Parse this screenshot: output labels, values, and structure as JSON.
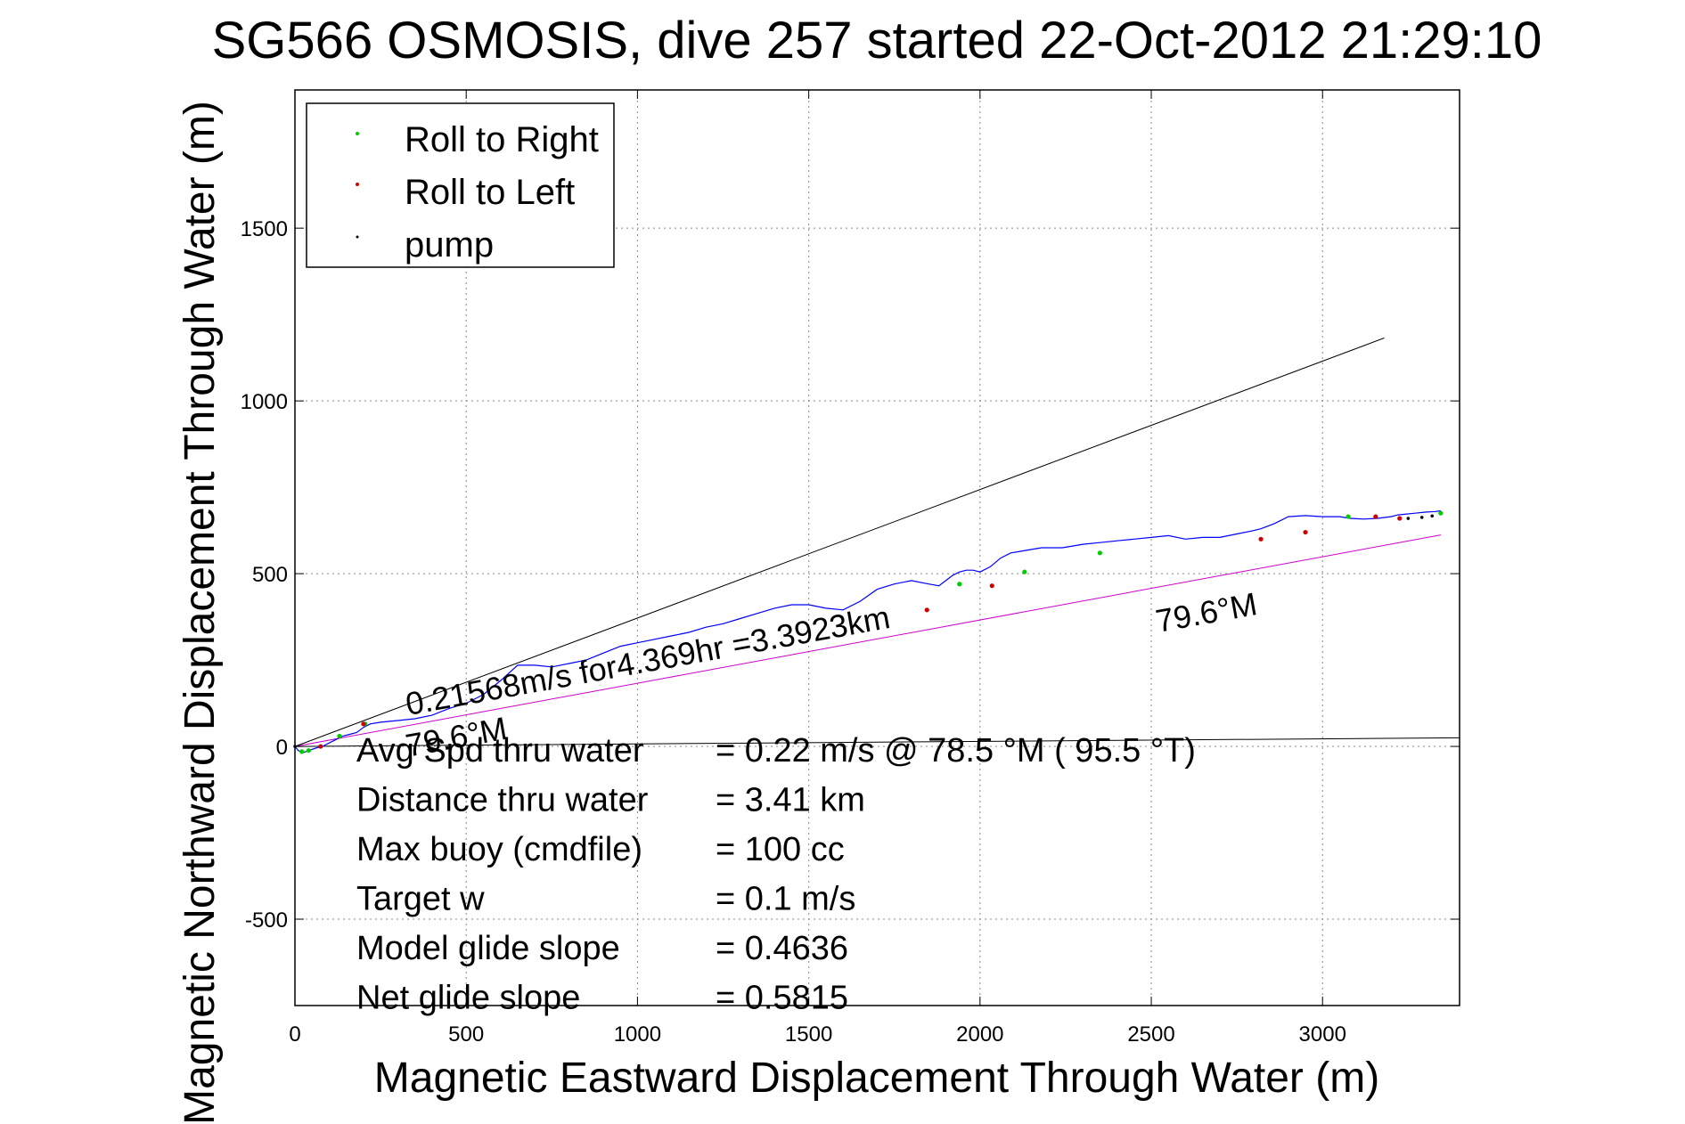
{
  "chart_data": {
    "type": "line",
    "title": "SG566 OSMOSIS, dive 257 started 22-Oct-2012 21:29:10",
    "xlabel": "Magnetic Eastward Displacement Through Water (m)",
    "ylabel": "Magnetic Northward Displacement Through Water (m)",
    "xlim": [
      0,
      3400
    ],
    "ylim": [
      -750,
      1900
    ],
    "xticks": [
      0,
      500,
      1000,
      1500,
      2000,
      2500,
      3000
    ],
    "yticks": [
      -500,
      0,
      500,
      1000,
      1500
    ],
    "xtick_labels": [
      "0",
      "500",
      "1000",
      "1500",
      "2000",
      "2500",
      "3000"
    ],
    "ytick_labels": [
      "-500",
      "0",
      "500",
      "1000",
      "1500"
    ],
    "grid": true,
    "legend_position": "top-left",
    "legend": [
      "Roll to Right",
      "Roll to Left",
      "pump"
    ],
    "colors": {
      "track": "#0000ff",
      "roll_right": "#00cc00",
      "roll_left": "#cc0000",
      "pump": "#000000",
      "heading_line": "#cc00cc",
      "reference_line": "#000000"
    },
    "series": [
      {
        "role": "track",
        "x": [
          0,
          10,
          25,
          40,
          60,
          80,
          100,
          120,
          140,
          160,
          180,
          200,
          220,
          250,
          300,
          350,
          400,
          450,
          500,
          550,
          600,
          650,
          700,
          750,
          800,
          850,
          900,
          950,
          1000,
          1050,
          1100,
          1150,
          1200,
          1250,
          1300,
          1350,
          1400,
          1450,
          1500,
          1550,
          1600,
          1650,
          1700,
          1750,
          1800,
          1850,
          1880,
          1900,
          1920,
          1940,
          1960,
          1980,
          2000,
          2030,
          2060,
          2090,
          2120,
          2150,
          2180,
          2210,
          2240,
          2270,
          2300,
          2350,
          2400,
          2450,
          2500,
          2550,
          2600,
          2650,
          2700,
          2750,
          2800,
          2820,
          2860,
          2900,
          2950,
          3000,
          3050,
          3080,
          3120,
          3160,
          3200,
          3220,
          3240,
          3270,
          3300,
          3330,
          3345
        ],
        "y": [
          0,
          -12,
          -18,
          -12,
          -5,
          0,
          10,
          20,
          30,
          35,
          40,
          55,
          65,
          70,
          75,
          80,
          90,
          110,
          125,
          150,
          190,
          235,
          235,
          230,
          240,
          250,
          270,
          290,
          300,
          310,
          320,
          330,
          345,
          355,
          370,
          385,
          400,
          410,
          410,
          400,
          395,
          420,
          455,
          470,
          480,
          470,
          465,
          480,
          495,
          505,
          510,
          510,
          505,
          520,
          545,
          560,
          565,
          570,
          575,
          575,
          575,
          580,
          585,
          590,
          595,
          600,
          605,
          610,
          600,
          605,
          605,
          615,
          625,
          630,
          645,
          665,
          668,
          665,
          665,
          660,
          658,
          660,
          665,
          670,
          672,
          675,
          678,
          680,
          682
        ]
      },
      {
        "role": "heading_line",
        "x": [
          0,
          3345
        ],
        "y": [
          0,
          612
        ]
      },
      {
        "role": "reference_line",
        "x": [
          0,
          3180
        ],
        "y": [
          0,
          1182
        ]
      },
      {
        "role": "reference_line",
        "x": [
          0,
          3400
        ],
        "y": [
          0,
          25
        ]
      }
    ],
    "roll_right_points": {
      "x": [
        20,
        40,
        130,
        205,
        1940,
        2130,
        2350,
        3075,
        3345
      ],
      "y": [
        -15,
        -12,
        30,
        65,
        470,
        505,
        560,
        665,
        675
      ]
    },
    "roll_left_points": {
      "x": [
        75,
        200,
        1845,
        2035,
        2820,
        2950,
        3155,
        3225
      ],
      "y": [
        0,
        65,
        395,
        465,
        600,
        620,
        665,
        660
      ]
    },
    "pump_points": {
      "x": [
        0,
        3250,
        3290,
        3320
      ],
      "y": [
        0,
        660,
        663,
        667
      ]
    },
    "annotations": [
      {
        "text": "0.21568m/s for4.369hr =3.3923km",
        "x": 330,
        "y": 90,
        "angle": 10.3
      },
      {
        "text": "79.6°M",
        "x": 2520,
        "y": 330,
        "angle": 10.3
      },
      {
        "text": "79.6°M",
        "x": 330,
        "y": -30,
        "angle": 10.3
      }
    ],
    "stats": [
      {
        "label": "Avg Spd thru water",
        "value": "=  0.22 m/s @  78.5 °M ( 95.5 °T)"
      },
      {
        "label": "Distance thru water",
        "value": "=  3.41 km"
      },
      {
        "label": "Max buoy (cmdfile)",
        "value": "= 100 cc"
      },
      {
        "label": "Target w",
        "value": "= 0.1 m/s"
      },
      {
        "label": "Model glide slope",
        "value": "= 0.4636"
      },
      {
        "label": "Net glide slope",
        "value": "= 0.5815"
      }
    ]
  }
}
